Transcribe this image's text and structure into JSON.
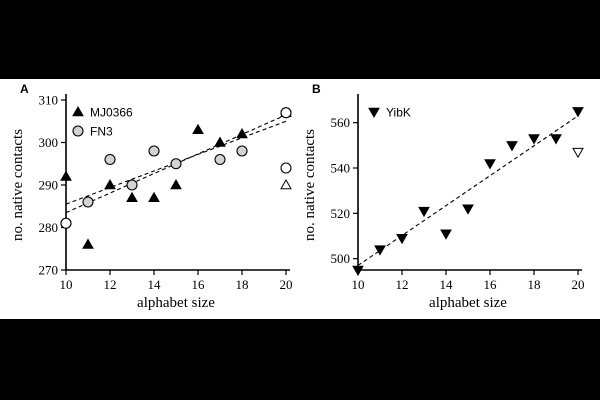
{
  "colors": {
    "background": "#000000",
    "panel": "#ffffff",
    "ink": "#000000",
    "circle_fill": "#d3d3d3"
  },
  "chart_data": [
    {
      "type": "scatter",
      "panel_label": "A",
      "xlabel": "alphabet size",
      "ylabel": "no. native contacts",
      "xlim": [
        10,
        20
      ],
      "ylim": [
        270,
        310
      ],
      "xticks": [
        10,
        12,
        14,
        16,
        18,
        20
      ],
      "yticks": [
        270,
        280,
        290,
        300,
        310
      ],
      "series": [
        {
          "name": "MJ0366",
          "marker": "triangle-up",
          "filled": true,
          "points": [
            [
              10,
              292
            ],
            [
              11,
              276
            ],
            [
              12,
              290
            ],
            [
              13,
              287
            ],
            [
              14,
              287
            ],
            [
              15,
              290
            ],
            [
              16,
              303
            ],
            [
              17,
              300
            ],
            [
              18,
              302
            ],
            [
              20,
              307
            ]
          ],
          "open_points": [
            [
              20,
              290
            ]
          ],
          "fit": [
            [
              10,
              283.5
            ],
            [
              20,
              306.5
            ]
          ]
        },
        {
          "name": "FN3",
          "marker": "circle",
          "filled": true,
          "points": [
            [
              10,
              281
            ],
            [
              11,
              286
            ],
            [
              12,
              296
            ],
            [
              13,
              290
            ],
            [
              14,
              298
            ],
            [
              15,
              295
            ],
            [
              17,
              296
            ],
            [
              18,
              298
            ],
            [
              20,
              307
            ]
          ],
          "open_points": [
            [
              10,
              281
            ],
            [
              20,
              294
            ],
            [
              20,
              307
            ]
          ],
          "fit": [
            [
              10,
              285.5
            ],
            [
              20,
              305
            ]
          ]
        }
      ]
    },
    {
      "type": "scatter",
      "panel_label": "B",
      "xlabel": "alphabet size",
      "ylabel": "no. native contacts",
      "xlim": [
        10,
        20
      ],
      "ylim": [
        495,
        570
      ],
      "xticks": [
        10,
        12,
        14,
        16,
        18,
        20
      ],
      "yticks": [
        500,
        520,
        540,
        560
      ],
      "series": [
        {
          "name": "YibK",
          "marker": "triangle-down",
          "filled": true,
          "points": [
            [
              10,
              495
            ],
            [
              11,
              504
            ],
            [
              12,
              509
            ],
            [
              13,
              521
            ],
            [
              14,
              511
            ],
            [
              15,
              522
            ],
            [
              16,
              542
            ],
            [
              17,
              550
            ],
            [
              18,
              553
            ],
            [
              19,
              553
            ],
            [
              20,
              565
            ]
          ],
          "open_points": [
            [
              20,
              547
            ]
          ],
          "fit": [
            [
              10,
              497
            ],
            [
              20,
              563
            ]
          ]
        }
      ]
    }
  ]
}
